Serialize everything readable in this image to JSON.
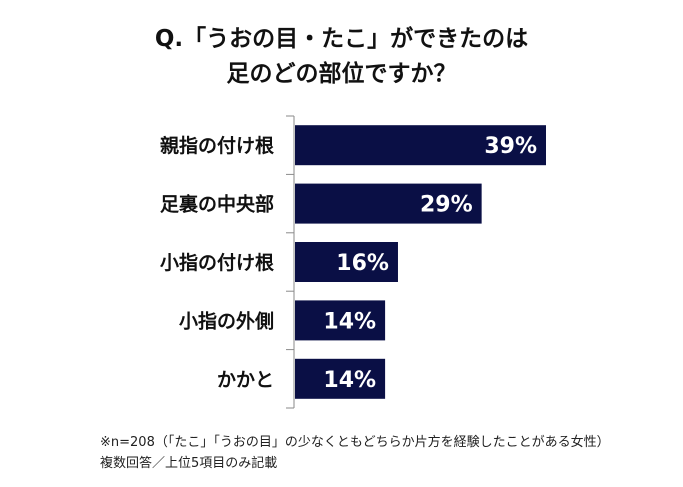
{
  "chart_data": {
    "type": "bar",
    "orientation": "horizontal",
    "title": [
      "Q.「うおの目・たこ」ができたのは",
      "足のどの部位ですか？"
    ],
    "categories": [
      "親指の付け根",
      "足裏の中央部",
      "小指の付け根",
      "小指の外側",
      "かかと"
    ],
    "values": [
      39,
      29,
      16,
      14,
      14
    ],
    "data_labels": [
      "39%",
      "29%",
      "16%",
      "14%",
      "14%"
    ],
    "unit": "%",
    "xlim": [
      0,
      39
    ],
    "grid": false,
    "bar_color": "#0a0f45",
    "label_color": "#ffffff",
    "notes": [
      "※n=208（「たこ」「うおの目」の少なくともどちらか片方を経験したことがある女性）",
      "複数回答／上位5項目のみ記載"
    ]
  }
}
